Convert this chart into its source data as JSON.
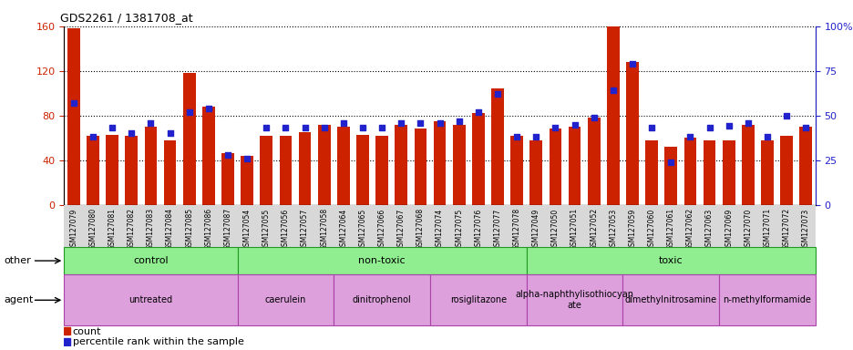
{
  "title": "GDS2261 / 1381708_at",
  "samples": [
    "GSM127079",
    "GSM127080",
    "GSM127081",
    "GSM127082",
    "GSM127083",
    "GSM127084",
    "GSM127085",
    "GSM127086",
    "GSM127087",
    "GSM127054",
    "GSM127055",
    "GSM127056",
    "GSM127057",
    "GSM127058",
    "GSM127064",
    "GSM127065",
    "GSM127066",
    "GSM127067",
    "GSM127068",
    "GSM127074",
    "GSM127075",
    "GSM127076",
    "GSM127077",
    "GSM127078",
    "GSM127049",
    "GSM127050",
    "GSM127051",
    "GSM127052",
    "GSM127053",
    "GSM127059",
    "GSM127060",
    "GSM127061",
    "GSM127062",
    "GSM127063",
    "GSM127069",
    "GSM127070",
    "GSM127071",
    "GSM127072",
    "GSM127073"
  ],
  "counts": [
    158,
    62,
    63,
    62,
    70,
    58,
    118,
    88,
    46,
    44,
    62,
    62,
    65,
    72,
    70,
    63,
    62,
    72,
    68,
    75,
    72,
    82,
    104,
    62,
    58,
    68,
    70,
    78,
    160,
    128,
    58,
    52,
    60,
    58,
    58,
    72,
    58,
    62,
    70
  ],
  "percentiles": [
    57,
    38,
    43,
    40,
    46,
    40,
    52,
    54,
    28,
    26,
    43,
    43,
    43,
    43,
    46,
    43,
    43,
    46,
    46,
    46,
    47,
    52,
    62,
    38,
    38,
    43,
    45,
    49,
    64,
    79,
    43,
    24,
    38,
    43,
    44,
    46,
    38,
    50,
    43
  ],
  "red_color": "#CC2200",
  "blue_color": "#2222CC",
  "groups_other": [
    {
      "label": "control",
      "start": 0,
      "end": 9,
      "color": "#90EE90"
    },
    {
      "label": "non-toxic",
      "start": 9,
      "end": 24,
      "color": "#90EE90"
    },
    {
      "label": "toxic",
      "start": 24,
      "end": 39,
      "color": "#90EE90"
    }
  ],
  "groups_agent": [
    {
      "label": "untreated",
      "start": 0,
      "end": 9,
      "color": "#DDA0DD"
    },
    {
      "label": "caerulein",
      "start": 9,
      "end": 14,
      "color": "#DDA0DD"
    },
    {
      "label": "dinitrophenol",
      "start": 14,
      "end": 19,
      "color": "#DDA0DD"
    },
    {
      "label": "rosiglitazone",
      "start": 19,
      "end": 24,
      "color": "#DDA0DD"
    },
    {
      "label": "alpha-naphthylisothiocyan\nate",
      "start": 24,
      "end": 29,
      "color": "#DDA0DD"
    },
    {
      "label": "dimethylnitrosamine",
      "start": 29,
      "end": 34,
      "color": "#DDA0DD"
    },
    {
      "label": "n-methylformamide",
      "start": 34,
      "end": 39,
      "color": "#DDA0DD"
    }
  ],
  "ylim_left": [
    0,
    160
  ],
  "ylim_right": [
    0,
    100
  ],
  "yticks_left": [
    0,
    40,
    80,
    120,
    160
  ],
  "yticks_right": [
    0,
    25,
    50,
    75,
    100
  ]
}
